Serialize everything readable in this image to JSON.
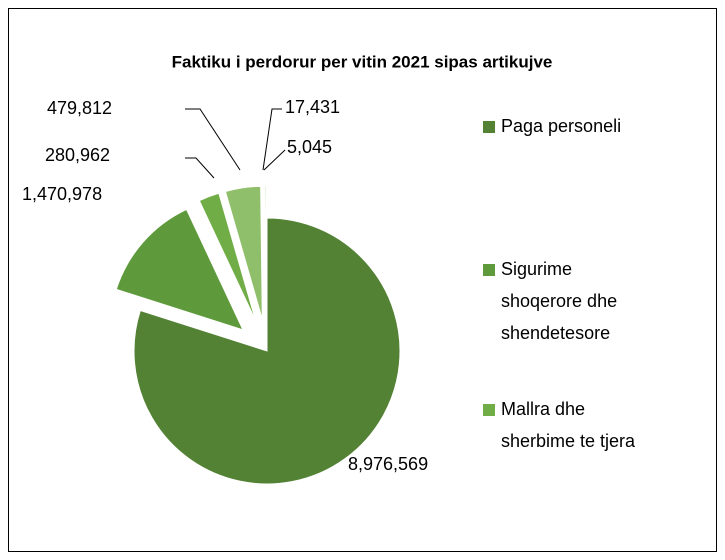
{
  "chart_data": {
    "type": "pie",
    "title": "Faktiku i perdorur per vitin 2021 sipas artikujve",
    "categories": [
      "Paga personeli",
      "Sigurime shoqerore dhe shendetesore",
      "Mallra dhe sherbime te tjera",
      null,
      null,
      null
    ],
    "values": [
      8976569,
      1470978,
      280962,
      479812,
      17431,
      5045
    ],
    "value_labels": [
      "8,976,569",
      "1,470,978",
      "280,962",
      "479,812",
      "17,431",
      "5,045"
    ],
    "colors": [
      "#548235",
      "#5e9a3b",
      "#70ad47",
      "#8fbf6a",
      "#a9d18e",
      "#c5e0b4"
    ],
    "legend": "right"
  }
}
